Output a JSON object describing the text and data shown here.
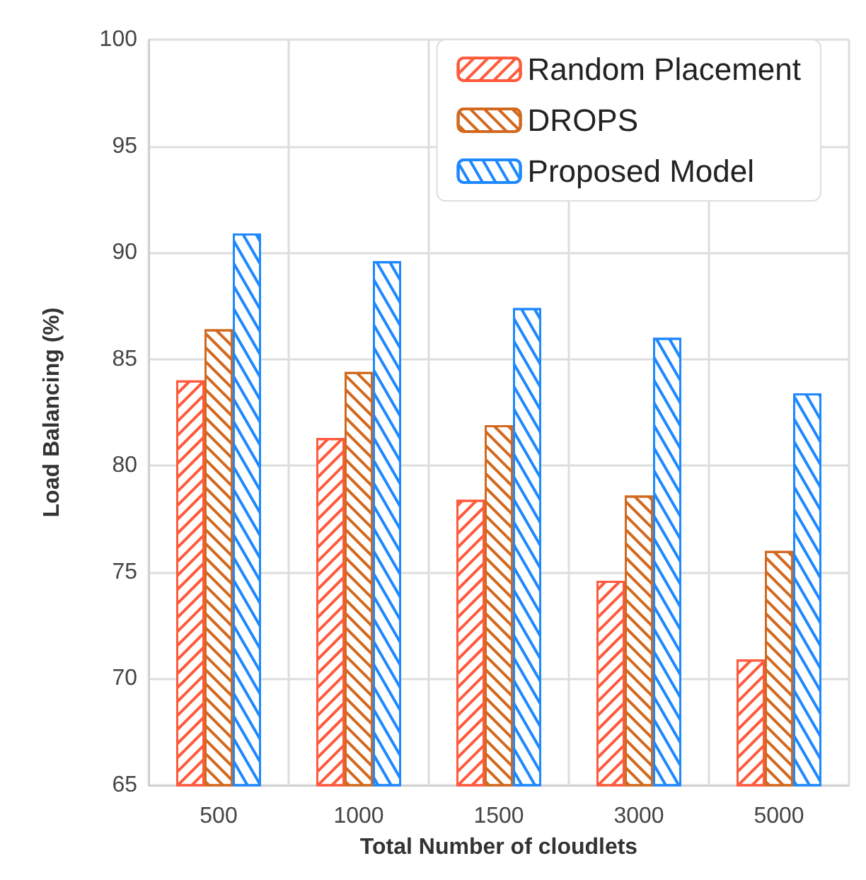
{
  "chart_data": {
    "type": "bar",
    "xlabel": "Total Number of cloudlets",
    "ylabel": "Load Balancing (%)",
    "categories": [
      "500",
      "1000",
      "1500",
      "3000",
      "5000"
    ],
    "series": [
      {
        "name": "Random Placement",
        "color": "#ff5a3c",
        "values": [
          84.0,
          81.3,
          78.4,
          74.6,
          70.9
        ]
      },
      {
        "name": "DROPS",
        "color": "#d2691e",
        "values": [
          86.4,
          84.4,
          81.9,
          78.6,
          76.0
        ]
      },
      {
        "name": "Proposed Model",
        "color": "#1e88ff",
        "values": [
          90.9,
          89.6,
          87.4,
          86.0,
          83.4
        ]
      }
    ],
    "ylim": [
      65,
      100
    ],
    "yticks": [
      65,
      70,
      75,
      80,
      85,
      90,
      95,
      100
    ],
    "grid": true,
    "legend": "top right"
  }
}
